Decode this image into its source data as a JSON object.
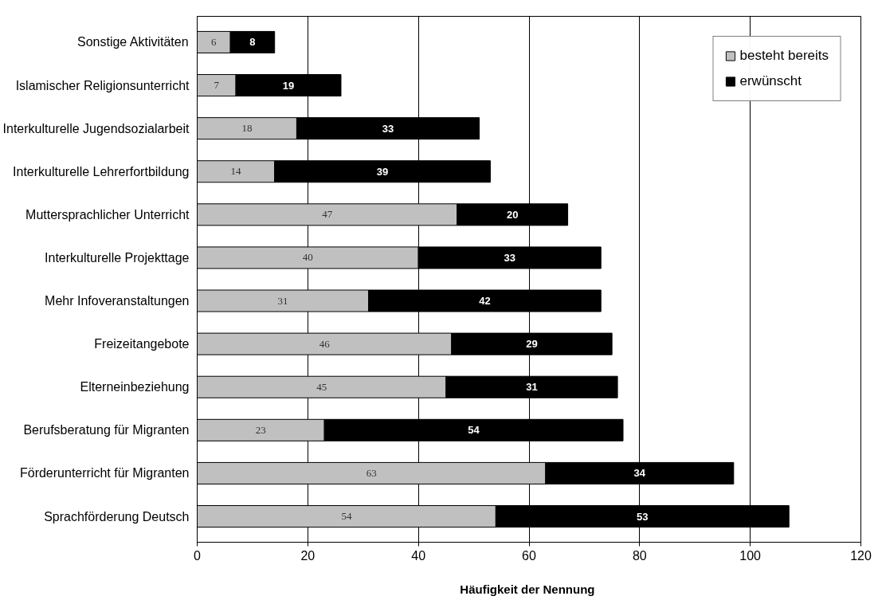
{
  "chart_data": {
    "type": "bar",
    "orientation": "horizontal",
    "stacked": true,
    "categories": [
      "Sonstige Aktivitäten",
      "Islamischer Religionsunterricht",
      "Interkulturelle Jugendsozialarbeit",
      "Interkulturelle Lehrerfortbildung",
      "Muttersprachlicher Unterricht",
      "Interkulturelle Projekttage",
      "Mehr Infoveranstaltungen",
      "Freizeitangebote",
      "Elterneinbeziehung",
      "Berufsberatung für Migranten",
      "Förderunterricht für Migranten",
      "Sprachförderung Deutsch"
    ],
    "series": [
      {
        "name": "besteht bereits",
        "color": "#c0c0c0",
        "values": [
          6,
          7,
          18,
          14,
          47,
          40,
          31,
          46,
          45,
          23,
          63,
          54
        ]
      },
      {
        "name": "erwünscht",
        "color": "#000000",
        "values": [
          8,
          19,
          33,
          39,
          20,
          33,
          42,
          29,
          31,
          54,
          34,
          53
        ]
      }
    ],
    "xlabel": "Häufigkeit der  Nennung",
    "xlim": [
      0,
      120
    ],
    "xticks": [
      0,
      20,
      40,
      60,
      80,
      100,
      120
    ],
    "grid": "x",
    "legend": "top right",
    "data_labels": true
  }
}
